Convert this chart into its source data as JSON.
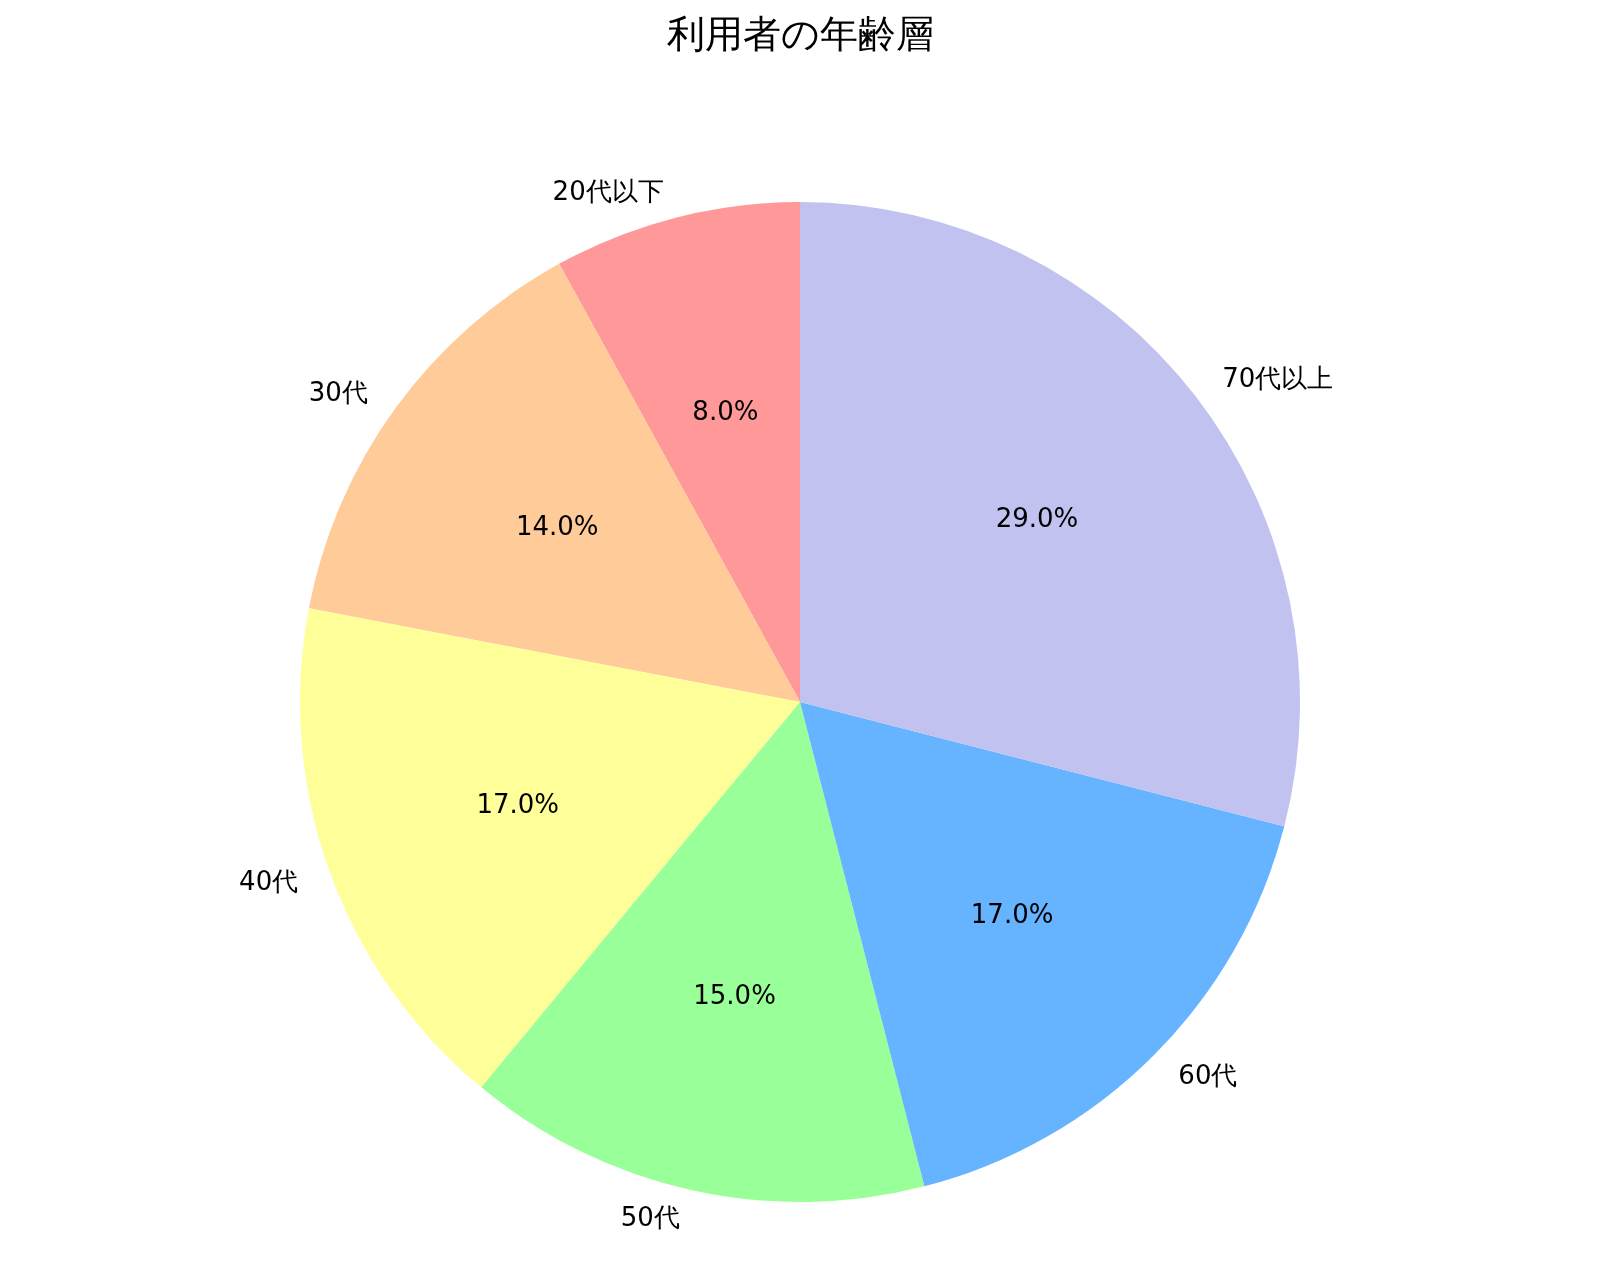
{
  "chart_data": {
    "type": "pie",
    "title": "利用者の年齢層",
    "categories": [
      "20代以下",
      "30代",
      "40代",
      "50代",
      "60代",
      "70代以上"
    ],
    "values": [
      8,
      14,
      17,
      15,
      17,
      29
    ],
    "colors": [
      "#ff9999",
      "#ffcc99",
      "#ffff99",
      "#99ff99",
      "#66b3ff",
      "#c2c2f0"
    ],
    "value_labels": [
      "8.0%",
      "14.0%",
      "17.0%",
      "15.0%",
      "17.0%",
      "29.0%"
    ],
    "legend": false
  }
}
